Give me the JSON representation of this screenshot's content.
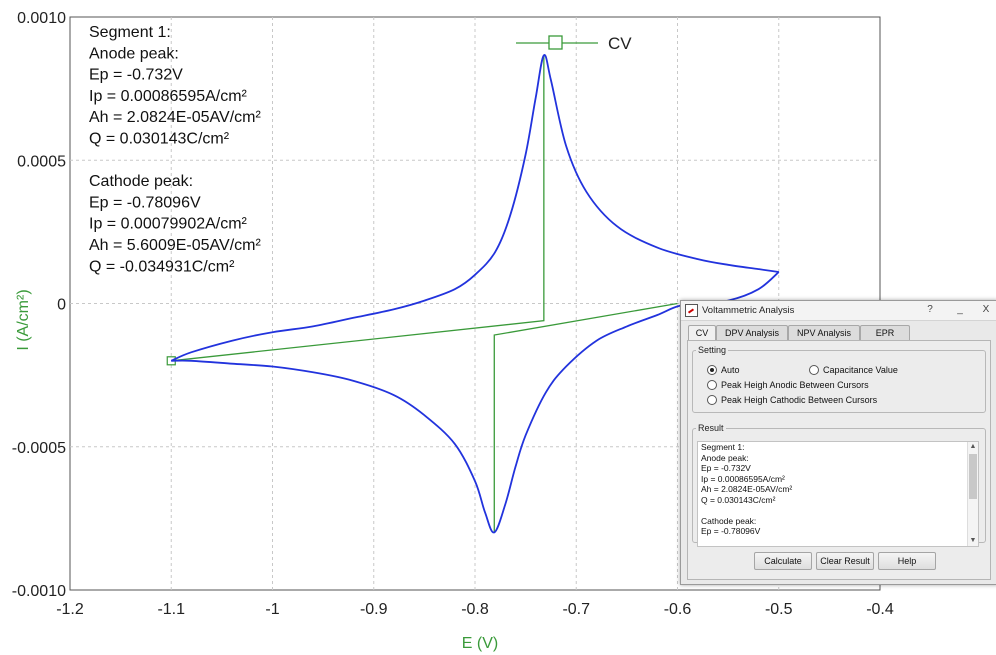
{
  "chart_data": {
    "type": "line",
    "title": "",
    "xlabel": "E (V)",
    "ylabel": "I (A/cm²)",
    "xlim": [
      -1.2,
      -0.4
    ],
    "ylim": [
      -0.001,
      0.001
    ],
    "x_ticks": [
      "-1.2",
      "-1.1",
      "-1",
      "-0.9",
      "-0.8",
      "-0.7",
      "-0.6",
      "-0.5",
      "-0.4"
    ],
    "y_ticks": [
      "0.0010",
      "0.0005",
      "0",
      "-0.0005",
      "-0.0010"
    ],
    "grid": true,
    "legend": {
      "placement": "top-center",
      "entries": [
        "CV"
      ]
    },
    "series": [
      {
        "name": "CV",
        "color": "#2233dd",
        "forward_sweep": {
          "x": [
            -1.1,
            -1.08,
            -1.04,
            -1.0,
            -0.96,
            -0.92,
            -0.88,
            -0.85,
            -0.82,
            -0.8,
            -0.78,
            -0.765,
            -0.75,
            -0.74,
            -0.732,
            -0.725,
            -0.71,
            -0.69,
            -0.66,
            -0.62,
            -0.58,
            -0.55,
            -0.52,
            -0.5
          ],
          "y": [
            -0.0002,
            -0.00017,
            -0.00013,
            -0.0001,
            -8e-05,
            -5e-05,
            -2e-05,
            1e-05,
            5e-05,
            0.0001,
            0.00018,
            0.00031,
            0.00052,
            0.00072,
            0.00086595,
            0.00078,
            0.00055,
            0.00039,
            0.00027,
            0.000195,
            0.000155,
            0.000135,
            0.00012,
            0.00011
          ]
        },
        "reverse_sweep": {
          "x": [
            -0.5,
            -0.52,
            -0.55,
            -0.58,
            -0.6,
            -0.62,
            -0.65,
            -0.68,
            -0.71,
            -0.73,
            -0.75,
            -0.76,
            -0.77,
            -0.78096,
            -0.79,
            -0.8,
            -0.82,
            -0.85,
            -0.88,
            -0.92,
            -0.96,
            -1.0,
            -1.04,
            -1.08,
            -1.1
          ],
          "y": [
            0.00011,
            5e-05,
            1e-05,
            0.0,
            -1e-05,
            -4e-05,
            -8e-05,
            -0.00013,
            -0.00022,
            -0.00031,
            -0.00046,
            -0.00057,
            -0.0007,
            -0.00079902,
            -0.00073,
            -0.00062,
            -0.00049,
            -0.00039,
            -0.00032,
            -0.00027,
            -0.00024,
            -0.00022,
            -0.00021,
            -0.0002,
            -0.0002
          ]
        }
      }
    ],
    "baselines": {
      "color": "#3a9a3a",
      "anode": {
        "x": [
          -1.1,
          -0.732,
          -0.732
        ],
        "y": [
          -0.0002,
          -6e-05,
          0.00086595
        ]
      },
      "cathode": {
        "x": [
          -0.6,
          -0.78096,
          -0.78096
        ],
        "y": [
          0.0,
          -0.00011,
          -0.00079902
        ]
      }
    }
  },
  "annotation": {
    "lines": [
      "Segment 1:",
      "Anode peak:",
      "Ep = -0.732V",
      "Ip = 0.00086595A/cm²",
      "Ah = 2.0824E-05AV/cm²",
      "Q = 0.030143C/cm²",
      "",
      "Cathode peak:",
      "Ep = -0.78096V",
      "Ip = 0.00079902A/cm²",
      "Ah = 5.6009E-05AV/cm²",
      "Q = -0.034931C/cm²"
    ]
  },
  "legend_label": "CV",
  "dialog": {
    "title": "Voltammetric Analysis",
    "help": "?",
    "minimize": "_",
    "close": "X",
    "tabs": [
      "CV",
      "DPV Analysis",
      "NPV Analysis",
      "EPR"
    ],
    "setting_label": "Setting",
    "radio_auto": "Auto",
    "radio_capacitance": "Capacitance Value",
    "radio_anodic": "Peak Heigh Anodic Between Cursors",
    "radio_cathodic": "Peak Heigh Cathodic Between Cursors",
    "result_label": "Result",
    "result_lines": [
      "Segment 1:",
      "Anode peak:",
      "Ep = -0.732V",
      "Ip = 0.00086595A/cm²",
      "Ah = 2.0824E-05AV/cm²",
      "Q = 0.030143C/cm²",
      "",
      "Cathode peak:",
      "Ep = -0.78096V"
    ],
    "calculate": "Calculate",
    "clear_result": "Clear Result",
    "help_button": "Help"
  }
}
